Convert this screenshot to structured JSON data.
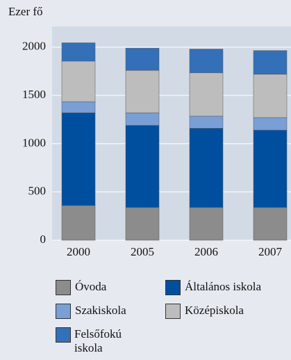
{
  "chart_data": {
    "type": "stacked_bar",
    "y_label": "Ezer fő",
    "categories": [
      "2000",
      "2005",
      "2006",
      "2007"
    ],
    "series": [
      {
        "name": "Óvoda",
        "color": "#8c8c8c",
        "values": [
          360,
          340,
          340,
          340
        ]
      },
      {
        "name": "Általános iskola",
        "color": "#004f9f",
        "values": [
          960,
          850,
          820,
          800
        ]
      },
      {
        "name": "Szakiskola",
        "color": "#7a9fd6",
        "values": [
          115,
          130,
          125,
          130
        ]
      },
      {
        "name": "Középiskola",
        "color": "#bdbdbd",
        "values": [
          420,
          440,
          450,
          450
        ]
      },
      {
        "name": "Felsőfokú iskola",
        "color": "#3370b8",
        "values": [
          190,
          230,
          245,
          245
        ]
      }
    ],
    "ylim": [
      0,
      2200
    ],
    "yticks": [
      0,
      500,
      1000,
      1500,
      2000
    ],
    "grid": true
  }
}
